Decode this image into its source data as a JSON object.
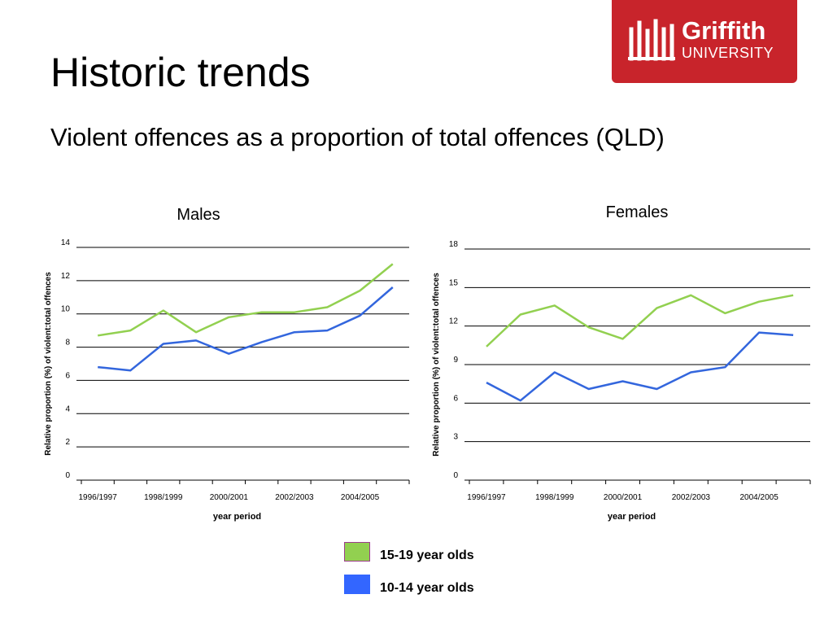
{
  "slide": {
    "title": "Historic trends",
    "subtitle": "Violent offences as a proportion of total offences (QLD)"
  },
  "logo": {
    "word1": "Griffith",
    "word2": "UNIVERSITY",
    "color": "#c8242b"
  },
  "legend": {
    "items": [
      {
        "label": "15-19 year olds",
        "color": "#92d050",
        "border": "#9b3c8c"
      },
      {
        "label": "10-14 year olds",
        "color": "#3366ff",
        "border": "#3366ff"
      }
    ]
  },
  "chart_data": [
    {
      "type": "line",
      "title": "Males",
      "xlabel": "year period",
      "ylabel": "Relative proportion (%) of violent:total offences",
      "x_tick_labels": [
        "1996/1997",
        "1998/1999",
        "2000/2001",
        "2002/2003",
        "2004/2005"
      ],
      "ylim": [
        0,
        14
      ],
      "yticks": [
        0,
        2,
        4,
        6,
        8,
        10,
        12,
        14
      ],
      "grid": true,
      "series": [
        {
          "name": "15-19 year olds",
          "color": "#92d050",
          "values": [
            8.7,
            9.0,
            10.2,
            8.9,
            9.8,
            10.1,
            10.1,
            10.4,
            11.4,
            13.0
          ]
        },
        {
          "name": "10-14 year olds",
          "color": "#3366dd",
          "values": [
            6.8,
            6.6,
            8.2,
            8.4,
            7.6,
            8.3,
            8.9,
            9.0,
            9.9,
            11.6
          ]
        }
      ]
    },
    {
      "type": "line",
      "title": "Females",
      "xlabel": "year period",
      "ylabel": "Relative proportion (%) of violent:total offences",
      "x_tick_labels": [
        "1996/1997",
        "1998/1999",
        "2000/2001",
        "2002/2003",
        "2004/2005"
      ],
      "ylim": [
        0,
        18
      ],
      "yticks": [
        0,
        3,
        6,
        9,
        12,
        15,
        18
      ],
      "grid": true,
      "series": [
        {
          "name": "15-19 year olds",
          "color": "#92d050",
          "values": [
            10.4,
            12.9,
            13.6,
            11.9,
            11.0,
            13.4,
            14.4,
            13.0,
            13.9,
            14.4
          ]
        },
        {
          "name": "10-14 year olds",
          "color": "#3366dd",
          "values": [
            7.6,
            6.2,
            8.4,
            7.1,
            7.7,
            7.1,
            8.4,
            8.8,
            11.5,
            11.3
          ]
        }
      ]
    }
  ]
}
